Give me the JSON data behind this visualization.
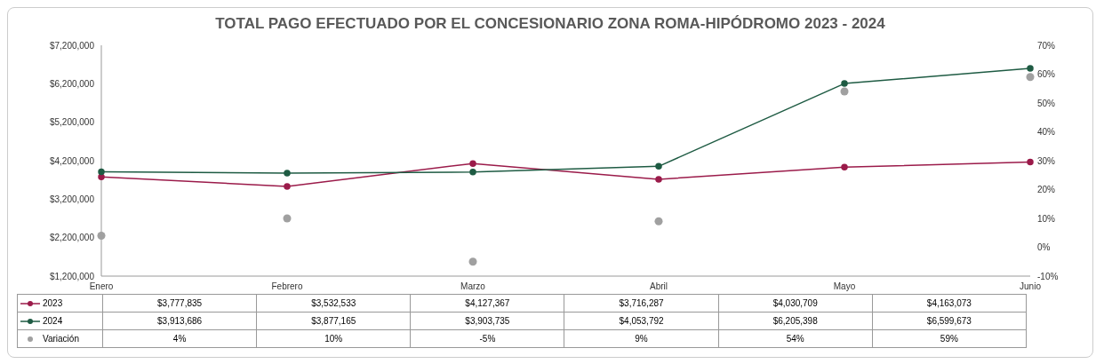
{
  "chart_data": {
    "type": "line",
    "title": "TOTAL PAGO EFECTUADO POR EL CONCESIONARIO ZONA ROMA-HIPÓDROMO 2023 -  2024",
    "categories": [
      "Enero",
      "Febrero",
      "Marzo",
      "Abril",
      "Mayo",
      "Junio"
    ],
    "series": [
      {
        "name": "2023",
        "color": "#9b1b4a",
        "values": [
          3777835,
          3532533,
          4127367,
          3716287,
          4030709,
          4163073
        ],
        "value_labels": [
          "$3,777,835",
          "$3,532,533",
          "$4,127,367",
          "$3,716,287",
          "$4,030,709",
          "$4,163,073"
        ]
      },
      {
        "name": "2024",
        "color": "#1e5b43",
        "values": [
          3913686,
          3877165,
          3903735,
          4053792,
          6205398,
          6599673
        ],
        "value_labels": [
          "$3,913,686",
          "$3,877,165",
          "$3,903,735",
          "$4,053,792",
          "$6,205,398",
          "$6,599,673"
        ]
      },
      {
        "name": "Variación",
        "type": "scatter",
        "axis": "y2",
        "color": "#a0a0a0",
        "values": [
          4,
          10,
          -5,
          9,
          54,
          59
        ],
        "value_labels": [
          "4%",
          "10%",
          "-5%",
          "9%",
          "54%",
          "59%"
        ]
      }
    ],
    "ylim": [
      1200000,
      7200000
    ],
    "yticks": [
      {
        "value": 1200000,
        "label": "$1,200,000"
      },
      {
        "value": 2200000,
        "label": "$2,200,000"
      },
      {
        "value": 3200000,
        "label": "$3,200,000"
      },
      {
        "value": 4200000,
        "label": "$4,200,000"
      },
      {
        "value": 5200000,
        "label": "$5,200,000"
      },
      {
        "value": 6200000,
        "label": "$6,200,000"
      },
      {
        "value": 7200000,
        "label": "$7,200,000"
      }
    ],
    "y2lim": [
      -10,
      70
    ],
    "y2ticks": [
      {
        "value": -10,
        "label": "-10%"
      },
      {
        "value": 0,
        "label": "0%"
      },
      {
        "value": 10,
        "label": "10%"
      },
      {
        "value": 20,
        "label": "20%"
      },
      {
        "value": 30,
        "label": "30%"
      },
      {
        "value": 40,
        "label": "40%"
      },
      {
        "value": 50,
        "label": "50%"
      },
      {
        "value": 60,
        "label": "60%"
      },
      {
        "value": 70,
        "label": "70%"
      }
    ],
    "marker": "circle",
    "legend": "bottom"
  }
}
